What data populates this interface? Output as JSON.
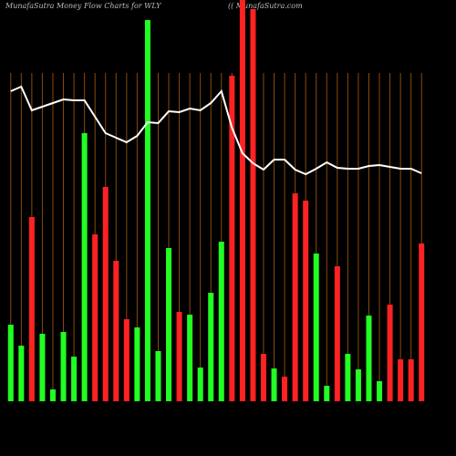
{
  "chart_data": {
    "type": "bar",
    "title": "MunafaSutra  Money Flow  Charts for WLY",
    "subtitle": "(( MunafaSutra.com",
    "categories": [
      null,
      null,
      null,
      null,
      null,
      null,
      null,
      null,
      null,
      null,
      null,
      null,
      null,
      null,
      null,
      null,
      null,
      null,
      null,
      null,
      null,
      null,
      null,
      null,
      null,
      null,
      null,
      null,
      null,
      null,
      null,
      null,
      null,
      null,
      null,
      null,
      null,
      null,
      null,
      null
    ],
    "ylim": [
      0,
      420
    ],
    "grid": true,
    "series": [
      {
        "type": "bar",
        "values": [
          84,
          61,
          202,
          74,
          13,
          76,
          49,
          294,
          183,
          235,
          154,
          90,
          81,
          418,
          55,
          168,
          98,
          95,
          37,
          119,
          175,
          357,
          440,
          430,
          52,
          36,
          27,
          228,
          220,
          162,
          17,
          148,
          52,
          35,
          94,
          22,
          106,
          46,
          46,
          173
        ],
        "colors": [
          "#22ff22",
          "#22ff22",
          "#ff2222",
          "#22ff22",
          "#22ff22",
          "#22ff22",
          "#22ff22",
          "#22ff22",
          "#ff2222",
          "#ff2222",
          "#ff2222",
          "#ff2222",
          "#22ff22",
          "#22ff22",
          "#22ff22",
          "#22ff22",
          "#ff2222",
          "#22ff22",
          "#22ff22",
          "#22ff22",
          "#22ff22",
          "#ff2222",
          "#ff2222",
          "#ff2222",
          "#ff2222",
          "#22ff22",
          "#ff2222",
          "#ff2222",
          "#ff2222",
          "#22ff22",
          "#22ff22",
          "#ff2222",
          "#22ff22",
          "#22ff22",
          "#22ff22",
          "#22ff22",
          "#ff2222",
          "#ff2222",
          "#ff2222",
          "#ff2222"
        ]
      },
      {
        "type": "line",
        "color": "#ffffff",
        "values": [
          340,
          345,
          319,
          323,
          327,
          331,
          330,
          330,
          312,
          294,
          289,
          284,
          291,
          306,
          305,
          318,
          317,
          321,
          319,
          327,
          340,
          300,
          272,
          261,
          254,
          265,
          265,
          254,
          249,
          255,
          262,
          256,
          255,
          255,
          258,
          259,
          257,
          255,
          255,
          250
        ]
      }
    ]
  }
}
